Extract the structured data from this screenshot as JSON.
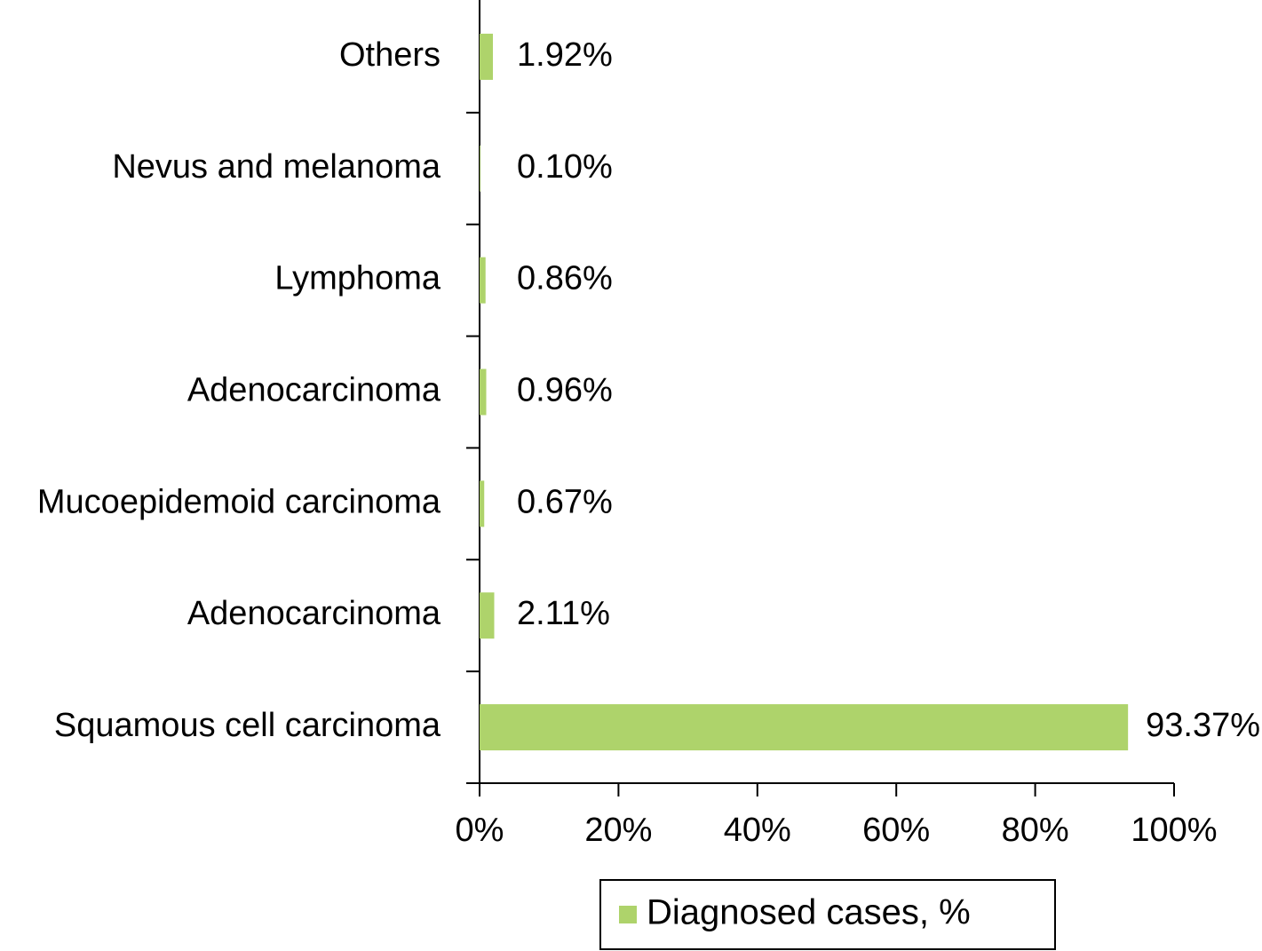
{
  "chart_data": {
    "type": "bar",
    "orientation": "horizontal",
    "categories": [
      "Others",
      "Nevus and melanoma",
      "Lymphoma",
      "Adenocarcinoma",
      "Mucoepidemoid carcinoma",
      "Adenocarcinoma",
      "Squamous cell carcinoma"
    ],
    "series": [
      {
        "name": "Diagnosed cases, %",
        "color": "#aed36b",
        "values": [
          1.92,
          0.1,
          0.86,
          0.96,
          0.67,
          2.11,
          93.37
        ],
        "value_labels": [
          "1.92%",
          "0.10%",
          "0.86%",
          "0.96%",
          "0.67%",
          "2.11%",
          "93.37%"
        ]
      }
    ],
    "xlim": [
      0,
      100
    ],
    "xticks": [
      {
        "value": 0,
        "label": "0%"
      },
      {
        "value": 20,
        "label": "20%"
      },
      {
        "value": 40,
        "label": "40%"
      },
      {
        "value": 60,
        "label": "60%"
      },
      {
        "value": 80,
        "label": "80%"
      },
      {
        "value": 100,
        "label": "100%"
      }
    ],
    "legend": "bottom"
  }
}
